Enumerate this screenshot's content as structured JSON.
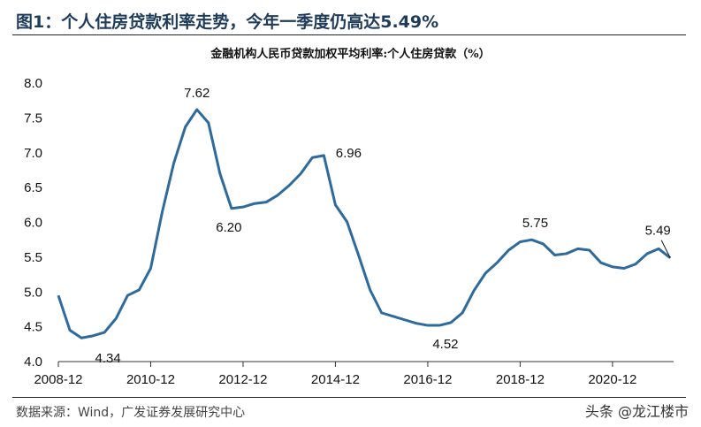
{
  "header": {
    "title": "图1：个人住房贷款利率走势，今年一季度仍高达5.49%"
  },
  "footer": {
    "source": "数据来源：Wind，广发证券发展研究中心",
    "watermark": "头条 @龙江楼市"
  },
  "chart_data": {
    "type": "line",
    "title": "金融机构人民币贷款加权平均利率:个人住房贷款（%）",
    "xlabel": "",
    "ylabel": "",
    "ylim": [
      4.0,
      8.0
    ],
    "yticks": [
      "4.0",
      "4.5",
      "5.0",
      "5.5",
      "6.0",
      "6.5",
      "7.0",
      "7.5",
      "8.0"
    ],
    "xticks": [
      "2008-12",
      "2010-12",
      "2012-12",
      "2014-12",
      "2016-12",
      "2018-12",
      "2020-12"
    ],
    "grid": false,
    "color": "#2e6a9c",
    "x": [
      "2008-12",
      "2009-03",
      "2009-06",
      "2009-09",
      "2009-12",
      "2010-03",
      "2010-06",
      "2010-09",
      "2010-12",
      "2011-03",
      "2011-06",
      "2011-09",
      "2011-12",
      "2012-03",
      "2012-06",
      "2012-09",
      "2012-12",
      "2013-03",
      "2013-06",
      "2013-09",
      "2013-12",
      "2014-03",
      "2014-06",
      "2014-09",
      "2014-12",
      "2015-03",
      "2015-06",
      "2015-09",
      "2015-12",
      "2016-03",
      "2016-06",
      "2016-09",
      "2016-12",
      "2017-03",
      "2017-06",
      "2017-09",
      "2017-12",
      "2018-03",
      "2018-06",
      "2018-09",
      "2018-12",
      "2019-03",
      "2019-06",
      "2019-09",
      "2019-12",
      "2020-03",
      "2020-06",
      "2020-09",
      "2020-12",
      "2021-03",
      "2021-06",
      "2021-09",
      "2021-12",
      "2022-03"
    ],
    "values": [
      4.95,
      4.45,
      4.34,
      4.37,
      4.42,
      4.62,
      4.95,
      5.03,
      5.34,
      6.15,
      6.85,
      7.37,
      7.62,
      7.43,
      6.7,
      6.2,
      6.22,
      6.27,
      6.29,
      6.39,
      6.53,
      6.7,
      6.93,
      6.96,
      6.25,
      6.01,
      5.53,
      5.03,
      4.7,
      4.65,
      4.6,
      4.55,
      4.52,
      4.52,
      4.56,
      4.7,
      5.02,
      5.27,
      5.42,
      5.6,
      5.72,
      5.75,
      5.69,
      5.53,
      5.55,
      5.62,
      5.6,
      5.42,
      5.36,
      5.34,
      5.4,
      5.55,
      5.62,
      5.49
    ],
    "annotations": [
      {
        "text": "4.34",
        "index": 2
      },
      {
        "text": "7.62",
        "index": 12
      },
      {
        "text": "6.20",
        "index": 15
      },
      {
        "text": "6.96",
        "index": 23
      },
      {
        "text": "4.52",
        "index": 32
      },
      {
        "text": "5.75",
        "index": 41
      },
      {
        "text": "5.49",
        "index": 53
      }
    ]
  }
}
